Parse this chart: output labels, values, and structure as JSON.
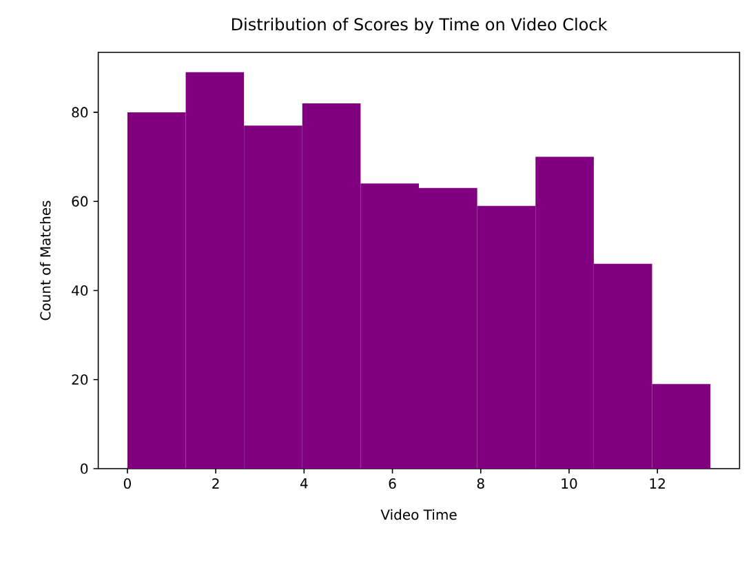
{
  "chart_data": {
    "type": "histogram",
    "title": "Distribution of Scores by Time on Video Clock",
    "xlabel": "Video Time",
    "ylabel": "Count of Matches",
    "bins": [
      0,
      1.32,
      2.64,
      3.96,
      5.28,
      6.6,
      7.92,
      9.24,
      10.56,
      11.88,
      13.2
    ],
    "values": [
      80,
      89,
      77,
      82,
      64,
      63,
      59,
      70,
      46,
      19
    ],
    "color": "#800080",
    "xlim": [
      -0.66,
      13.86
    ],
    "ylim": [
      0,
      93.45
    ],
    "xticks": [
      0,
      2,
      4,
      6,
      8,
      10,
      12
    ],
    "yticks": [
      0,
      20,
      40,
      60,
      80
    ]
  }
}
